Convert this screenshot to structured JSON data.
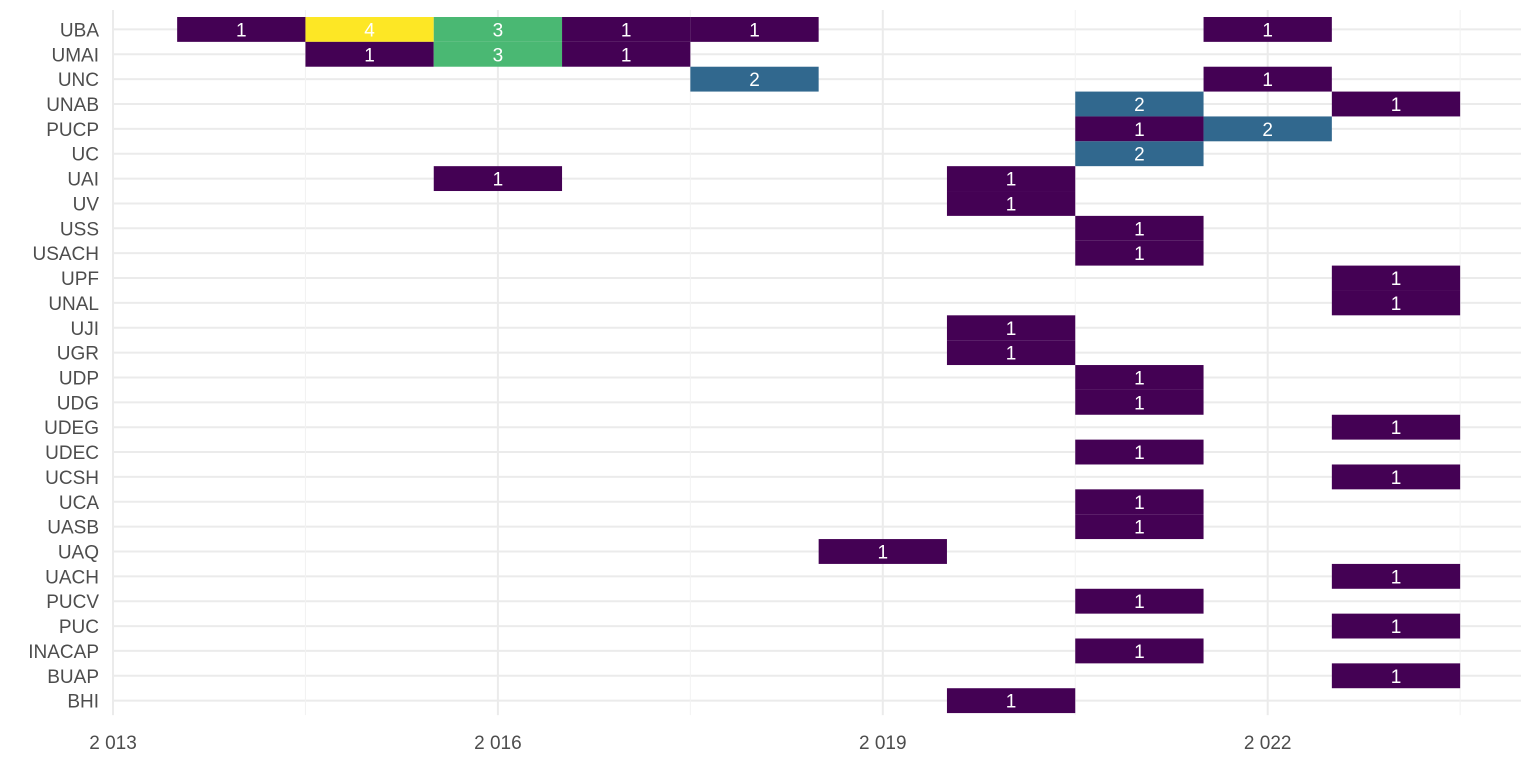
{
  "chart_data": {
    "type": "heatmap",
    "title": "",
    "xlabel": "",
    "ylabel": "",
    "x_ticks": [
      2013,
      2016,
      2019,
      2022
    ],
    "x_tick_labels": [
      "2 013",
      "2 016",
      "2 019",
      "2 022"
    ],
    "xlim": [
      2013,
      2024.1
    ],
    "grid": true,
    "categories": [
      "UBA",
      "UMAI",
      "UNC",
      "UNAB",
      "PUCP",
      "UC",
      "UAI",
      "UV",
      "USS",
      "USACH",
      "UPF",
      "UNAL",
      "UJI",
      "UGR",
      "UDP",
      "UDG",
      "UDEG",
      "UDEC",
      "UCSH",
      "UCA",
      "UASB",
      "UAQ",
      "UACH",
      "PUCV",
      "PUC",
      "INACAP",
      "BUAP",
      "BHI"
    ],
    "color_scale": {
      "1": "#440154",
      "2": "#31688e",
      "3": "#4ab873",
      "4": "#fde725"
    },
    "cells": [
      {
        "y": "UBA",
        "x": 2014,
        "value": 1
      },
      {
        "y": "UBA",
        "x": 2015,
        "value": 4
      },
      {
        "y": "UBA",
        "x": 2016,
        "value": 3
      },
      {
        "y": "UBA",
        "x": 2017,
        "value": 1
      },
      {
        "y": "UBA",
        "x": 2018,
        "value": 1
      },
      {
        "y": "UBA",
        "x": 2022,
        "value": 1
      },
      {
        "y": "UMAI",
        "x": 2015,
        "value": 1
      },
      {
        "y": "UMAI",
        "x": 2016,
        "value": 3
      },
      {
        "y": "UMAI",
        "x": 2017,
        "value": 1
      },
      {
        "y": "UNC",
        "x": 2018,
        "value": 2
      },
      {
        "y": "UNC",
        "x": 2022,
        "value": 1
      },
      {
        "y": "UNAB",
        "x": 2021,
        "value": 2
      },
      {
        "y": "UNAB",
        "x": 2023,
        "value": 1
      },
      {
        "y": "PUCP",
        "x": 2021,
        "value": 1
      },
      {
        "y": "PUCP",
        "x": 2022,
        "value": 2
      },
      {
        "y": "UC",
        "x": 2021,
        "value": 2
      },
      {
        "y": "UAI",
        "x": 2016,
        "value": 1
      },
      {
        "y": "UAI",
        "x": 2020,
        "value": 1
      },
      {
        "y": "UV",
        "x": 2020,
        "value": 1
      },
      {
        "y": "USS",
        "x": 2021,
        "value": 1
      },
      {
        "y": "USACH",
        "x": 2021,
        "value": 1
      },
      {
        "y": "UPF",
        "x": 2023,
        "value": 1
      },
      {
        "y": "UNAL",
        "x": 2023,
        "value": 1
      },
      {
        "y": "UJI",
        "x": 2020,
        "value": 1
      },
      {
        "y": "UGR",
        "x": 2020,
        "value": 1
      },
      {
        "y": "UDP",
        "x": 2021,
        "value": 1
      },
      {
        "y": "UDG",
        "x": 2021,
        "value": 1
      },
      {
        "y": "UDEG",
        "x": 2023,
        "value": 1
      },
      {
        "y": "UDEC",
        "x": 2021,
        "value": 1
      },
      {
        "y": "UCSH",
        "x": 2023,
        "value": 1
      },
      {
        "y": "UCA",
        "x": 2021,
        "value": 1
      },
      {
        "y": "UASB",
        "x": 2021,
        "value": 1
      },
      {
        "y": "UAQ",
        "x": 2019,
        "value": 1
      },
      {
        "y": "UACH",
        "x": 2023,
        "value": 1
      },
      {
        "y": "PUCV",
        "x": 2021,
        "value": 1
      },
      {
        "y": "PUC",
        "x": 2023,
        "value": 1
      },
      {
        "y": "INACAP",
        "x": 2021,
        "value": 1
      },
      {
        "y": "BUAP",
        "x": 2023,
        "value": 1
      },
      {
        "y": "BHI",
        "x": 2020,
        "value": 1
      }
    ]
  }
}
